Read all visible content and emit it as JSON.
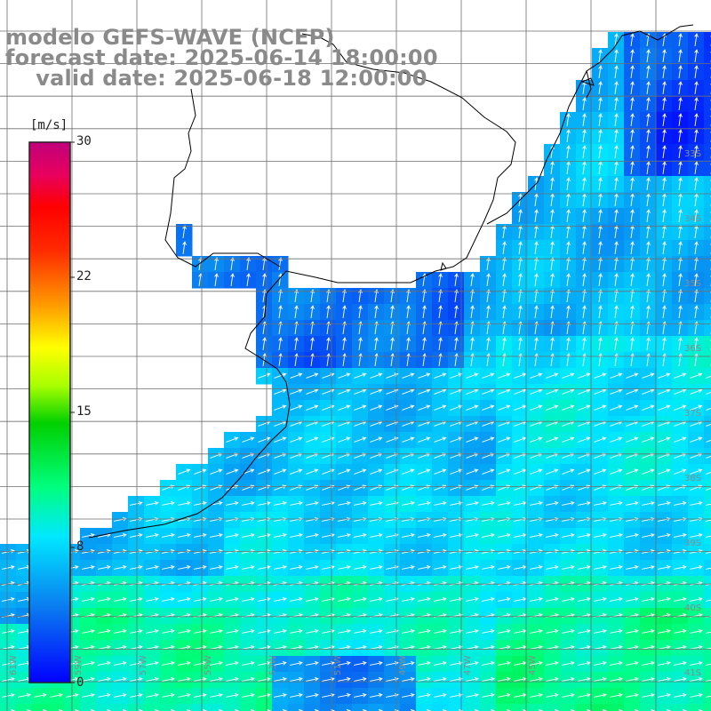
{
  "title": {
    "line1": "modelo GEFS-WAVE (NCEP)",
    "line2": "forecast date: 2025-06-14 18:00:00",
    "line3": "    valid date: 2025-06-18 12:00:00"
  },
  "colorbar": {
    "unit": "[m/s]",
    "ticks": [
      "30",
      "22",
      "15",
      "8",
      "0"
    ],
    "colors": [
      "#0000ff",
      "#0a7cf0",
      "#00e0ff",
      "#00ff7a",
      "#00e000",
      "#aaff00",
      "#ffff00",
      "#ff9900",
      "#ff3300",
      "#ff0000",
      "#e8006a",
      "#c0007a"
    ]
  },
  "grid": {
    "lon_labels": [
      "61W",
      "59W",
      "57W",
      "55W",
      "53W",
      "51W",
      "49W",
      "47W",
      "45W"
    ],
    "lat_labels": [
      "33S",
      "34S",
      "35S",
      "36S",
      "37S",
      "38S",
      "39S",
      "40S",
      "41S"
    ]
  },
  "field_colors": {
    "land": "#ffffff",
    "coast": "#000000",
    "grid_line": "#6e6e6e",
    "arrow": "#ffffff"
  }
}
